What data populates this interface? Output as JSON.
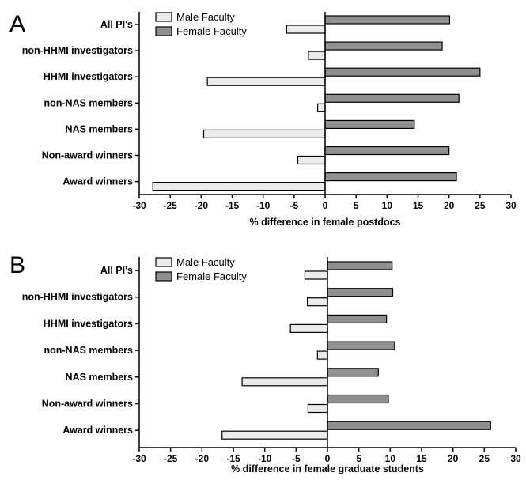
{
  "chart_data": [
    {
      "type": "bar",
      "panel_label": "A",
      "orientation": "horizontal",
      "categories": [
        "All PI's",
        "non-HHMI investigators",
        "HHMI investigators",
        "non-NAS members",
        "NAS members",
        "Non-award winners",
        "Award winners"
      ],
      "series": [
        {
          "name": "Male Faculty",
          "color": "#ebebeb",
          "values": [
            -6.2,
            -2.7,
            -19.0,
            -1.2,
            -19.6,
            -4.4,
            -27.8
          ]
        },
        {
          "name": "Female Faculty",
          "color": "#8f8f8f",
          "values": [
            20.1,
            18.9,
            25.0,
            21.6,
            14.4,
            20.0,
            21.2
          ]
        }
      ],
      "xlabel": "% difference in female postdocs",
      "xlim": [
        -30,
        30
      ],
      "xticks": [
        -30,
        -25,
        -20,
        -15,
        -10,
        -5,
        0,
        5,
        10,
        15,
        20,
        25,
        30
      ],
      "grid": false,
      "legend_position": "top-left"
    },
    {
      "type": "bar",
      "panel_label": "B",
      "orientation": "horizontal",
      "categories": [
        "All PI's",
        "non-HHMI investigators",
        "HHMI investigators",
        "non-NAS members",
        "NAS members",
        "Non-award winners",
        "Award winners"
      ],
      "series": [
        {
          "name": "Male Faculty",
          "color": "#ebebeb",
          "values": [
            -3.6,
            -3.2,
            -5.9,
            -1.6,
            -13.6,
            -3.1,
            -16.8
          ]
        },
        {
          "name": "Female Faculty",
          "color": "#8f8f8f",
          "values": [
            10.3,
            10.4,
            9.4,
            10.7,
            8.1,
            9.7,
            26.0
          ]
        }
      ],
      "xlabel": "% difference in female graduate students",
      "xlim": [
        -30,
        30
      ],
      "xticks": [
        -30,
        -25,
        -20,
        -15,
        -10,
        -5,
        0,
        5,
        10,
        15,
        20,
        25,
        30
      ],
      "grid": false,
      "legend_position": "top-left"
    }
  ]
}
